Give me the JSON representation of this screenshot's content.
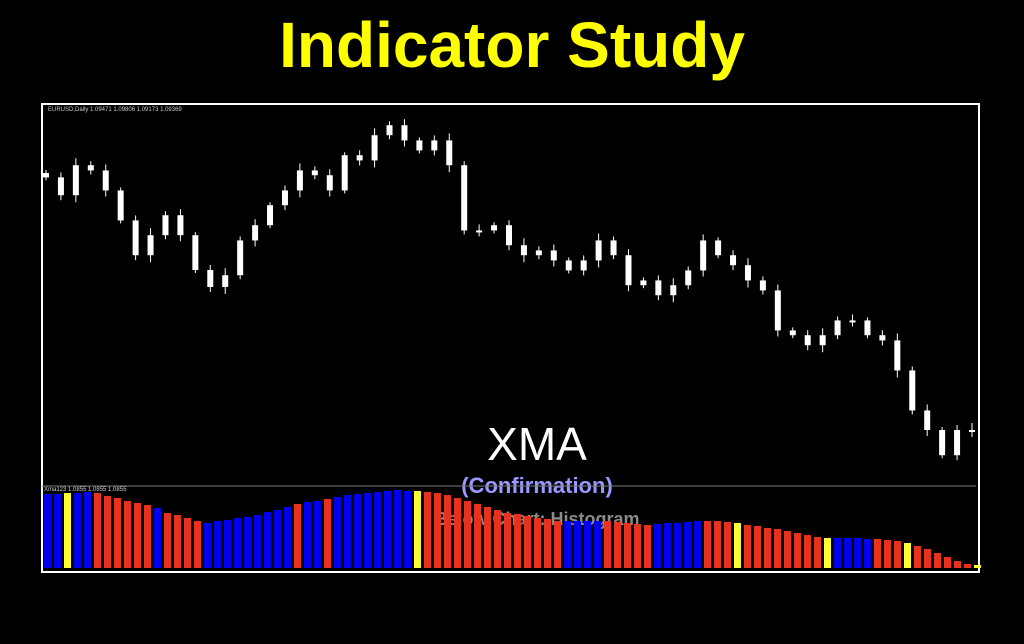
{
  "title": "Indicator Study",
  "overlay": {
    "name": "XMA",
    "sub": "(Confirmation)",
    "note": "Below Chart: Histogram"
  },
  "chart_data": [
    {
      "type": "candlestick",
      "header": "EURUSD,Daily  1.09471 1.09806 1.09173 1.09369",
      "closes": [
        1.1518,
        1.1477,
        1.1546,
        1.1534,
        1.1488,
        1.1419,
        1.1339,
        1.1385,
        1.1431,
        1.1385,
        1.1305,
        1.1266,
        1.1293,
        1.1373,
        1.1408,
        1.1454,
        1.1488,
        1.1534,
        1.1523,
        1.1488,
        1.1569,
        1.1557,
        1.1615,
        1.1638,
        1.1603,
        1.158,
        1.1603,
        1.1546,
        1.1396,
        1.1396,
        1.1408,
        1.1362,
        1.1339,
        1.135,
        1.1327,
        1.1304,
        1.1327,
        1.1373,
        1.1339,
        1.127,
        1.1281,
        1.1247,
        1.127,
        1.1304,
        1.1373,
        1.1339,
        1.1316,
        1.1281,
        1.1258,
        1.1166,
        1.1155,
        1.1132,
        1.1155,
        1.1189,
        1.1189,
        1.1155,
        1.1143,
        1.1074,
        1.0982,
        1.0937,
        1.0879,
        1.0937,
        1.0937
      ],
      "candle_color": "#ffffff"
    },
    {
      "type": "bar",
      "header": "Xma123 1.0855 1.0855 1.0855",
      "values": [
        74,
        74,
        75,
        75,
        76,
        75,
        72,
        70,
        67,
        65,
        63,
        60,
        55,
        53,
        50,
        47,
        45,
        47,
        48,
        50,
        51,
        53,
        56,
        58,
        61,
        64,
        66,
        67,
        69,
        71,
        73,
        74,
        75,
        76,
        77,
        78,
        77,
        77,
        76,
        75,
        73,
        70,
        67,
        64,
        61,
        58,
        55,
        54,
        52,
        50,
        49,
        47,
        47,
        47,
        47,
        47,
        47,
        46,
        45,
        44,
        43,
        44,
        45,
        45,
        46,
        47,
        47,
        47,
        46,
        45,
        43,
        42,
        40,
        39,
        37,
        35,
        33,
        31,
        30,
        30,
        30,
        30,
        29,
        29,
        28,
        27,
        25,
        22,
        19,
        15,
        11,
        7,
        4,
        3
      ],
      "colors": [
        "B",
        "B",
        "Y",
        "B",
        "B",
        "R",
        "R",
        "R",
        "R",
        "R",
        "R",
        "B",
        "R",
        "R",
        "R",
        "R",
        "B",
        "B",
        "B",
        "B",
        "B",
        "B",
        "B",
        "B",
        "B",
        "R",
        "B",
        "B",
        "R",
        "B",
        "B",
        "B",
        "B",
        "B",
        "B",
        "B",
        "B",
        "Y",
        "R",
        "R",
        "R",
        "R",
        "R",
        "R",
        "R",
        "R",
        "R",
        "R",
        "R",
        "R",
        "R",
        "R",
        "B",
        "B",
        "B",
        "B",
        "R",
        "R",
        "R",
        "R",
        "R",
        "B",
        "B",
        "B",
        "B",
        "B",
        "R",
        "R",
        "R",
        "Y",
        "R",
        "R",
        "R",
        "R",
        "R",
        "R",
        "R",
        "R",
        "Y",
        "B",
        "B",
        "B",
        "B",
        "R",
        "R",
        "R",
        "Y",
        "R",
        "R",
        "R",
        "R",
        "R",
        "R",
        "Y"
      ],
      "palette": {
        "B": "#0000ee",
        "R": "#e8321e",
        "Y": "#ffff33"
      }
    }
  ]
}
